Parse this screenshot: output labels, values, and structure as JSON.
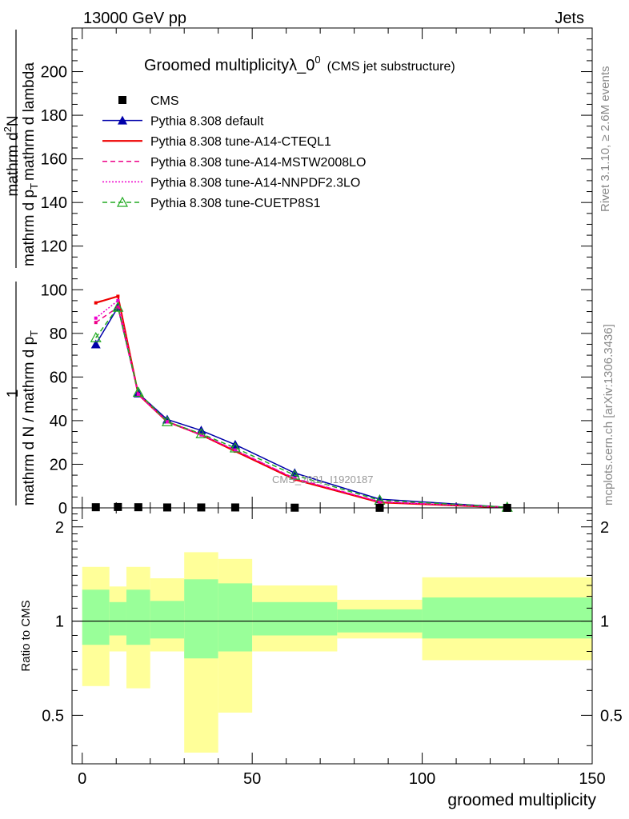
{
  "header": {
    "left": "13000 GeV pp",
    "right": "Jets"
  },
  "side_labels": {
    "rivet": "Rivet 3.1.10, ≥ 2.6M events",
    "mcplots": "mcplots.cern.ch [arXiv:1306.3436]"
  },
  "watermark": "CMS_2021_I1920187",
  "chart_data": [
    {
      "type": "line",
      "title_main": "Groomed multiplicityλ_0",
      "title_sup": "0",
      "title_paren": "(CMS jet substructure)",
      "ylabel": "1 / mathrm d N / mathrm d p_T mathrm d^2N / mathrm d p_T mathrm d lambda",
      "ylabel_parts": {
        "frac_left_num": "1",
        "frac_left_den": "mathrm d N / mathrm d p",
        "frac_left_den_sub": "T",
        "frac_right_num": "mathrm d",
        "frac_right_num_sup": "2",
        "frac_right_num_tail": "N",
        "frac_right_den": "mathrm d p",
        "frac_right_den_sub": "T",
        "frac_right_den_tail": "mathrm d lambda"
      },
      "xlim": [
        -3,
        150
      ],
      "ylim": [
        0,
        220
      ],
      "y_ticks": [
        0,
        20,
        40,
        60,
        80,
        100,
        120,
        140,
        160,
        180,
        200
      ],
      "x_ticks": [
        0,
        50,
        100,
        150
      ],
      "x": [
        4,
        10.5,
        16.5,
        25,
        35,
        45,
        62.5,
        87.5,
        125
      ],
      "series": [
        {
          "name": "CMS",
          "color": "#000000",
          "marker": "square",
          "line": "none",
          "values": [
            0.3,
            0.4,
            0.3,
            0.2,
            0.2,
            0.2,
            0.1,
            0.05,
            0.02
          ]
        },
        {
          "name": "Pythia 8.308 default",
          "color": "#0000aa",
          "marker": "triangle",
          "line": "solid",
          "values": [
            75,
            92,
            52.5,
            40.5,
            35.5,
            29,
            16,
            4,
            0.3
          ]
        },
        {
          "name": "Pythia 8.308 tune-A14-CTEQL1",
          "color": "#ee0000",
          "marker": "none",
          "line": "solid",
          "values": [
            94,
            97,
            52,
            39.5,
            33.5,
            26,
            13,
            2.5,
            0.2
          ]
        },
        {
          "name": "Pythia 8.308 tune-A14-MSTW2008LO",
          "color": "#ee0088",
          "marker": "none",
          "line": "dashed",
          "values": [
            85,
            92,
            52,
            39.5,
            33.5,
            26.5,
            13.5,
            2.8,
            0.2
          ]
        },
        {
          "name": "Pythia 8.308 tune-A14-NNPDF2.3LO",
          "color": "#ee00cc",
          "marker": "none",
          "line": "dotted",
          "values": [
            87,
            95,
            52,
            39.5,
            33.5,
            26.5,
            13.5,
            2.8,
            0.2
          ]
        },
        {
          "name": "Pythia 8.308 tune-CUETP8S1",
          "color": "#22aa22",
          "marker": "open-triangle",
          "line": "dashed",
          "values": [
            78,
            92,
            53,
            39.5,
            34,
            27.5,
            15,
            3.5,
            0.3
          ]
        }
      ]
    },
    {
      "type": "area",
      "ylabel": "Ratio to CMS",
      "xlabel": "groomed multiplicity",
      "xlim": [
        -3,
        150
      ],
      "ylim": [
        0.35,
        2.3
      ],
      "log_y": true,
      "y_ticks": [
        0.5,
        1,
        2
      ],
      "x_ticks": [
        0,
        50,
        100,
        150
      ],
      "reference_line": 1,
      "colors": {
        "inner": "#99ff99",
        "outer": "#ffff99"
      },
      "bins": [
        {
          "lo": 0,
          "hi": 8,
          "inner": [
            0.84,
            1.26
          ],
          "outer": [
            0.62,
            1.49
          ]
        },
        {
          "lo": 8,
          "hi": 13,
          "inner": [
            0.9,
            1.15
          ],
          "outer": [
            0.8,
            1.29
          ]
        },
        {
          "lo": 13,
          "hi": 20,
          "inner": [
            0.84,
            1.26
          ],
          "outer": [
            0.61,
            1.49
          ]
        },
        {
          "lo": 20,
          "hi": 30,
          "inner": [
            0.88,
            1.16
          ],
          "outer": [
            0.8,
            1.37
          ]
        },
        {
          "lo": 30,
          "hi": 40,
          "inner": [
            0.76,
            1.36
          ],
          "outer": [
            0.38,
            1.66
          ]
        },
        {
          "lo": 40,
          "hi": 50,
          "inner": [
            0.8,
            1.32
          ],
          "outer": [
            0.51,
            1.58
          ]
        },
        {
          "lo": 50,
          "hi": 75,
          "inner": [
            0.9,
            1.15
          ],
          "outer": [
            0.8,
            1.3
          ]
        },
        {
          "lo": 75,
          "hi": 100,
          "inner": [
            0.92,
            1.09
          ],
          "outer": [
            0.88,
            1.17
          ]
        },
        {
          "lo": 100,
          "hi": 150,
          "inner": [
            0.88,
            1.19
          ],
          "outer": [
            0.75,
            1.38
          ]
        }
      ]
    }
  ]
}
